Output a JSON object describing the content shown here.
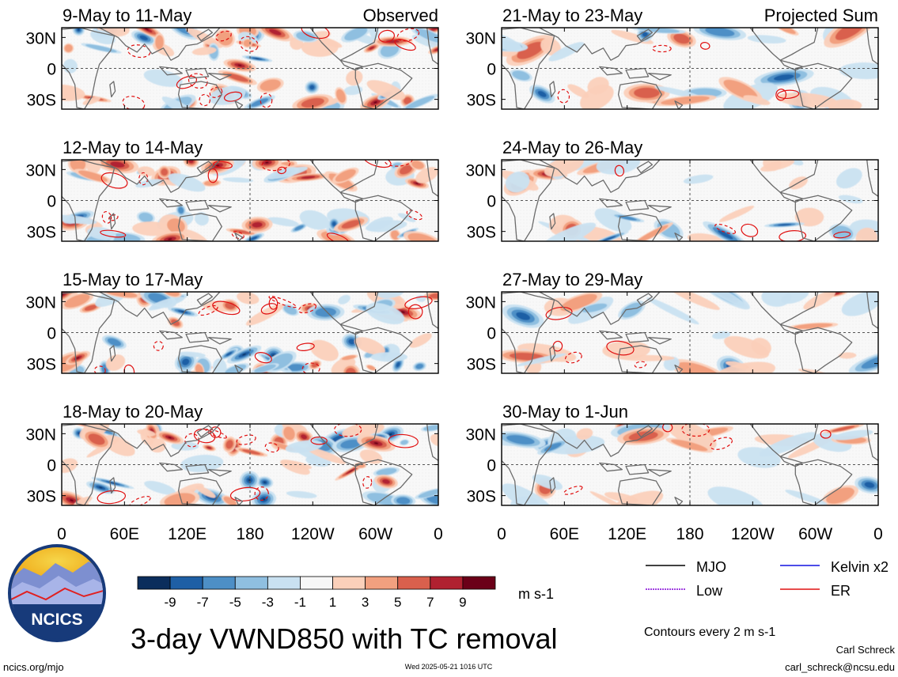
{
  "chart_data": {
    "type": "heatmap",
    "title": "3-day VWND850 with TC removal",
    "units": "m s-1",
    "contour_note": "Contours every 2 m s-1",
    "columns": [
      {
        "label": "Observed",
        "panels": [
          "9-May to 11-May",
          "12-May to 14-May",
          "15-May to 17-May",
          "18-May to 20-May"
        ]
      },
      {
        "label": "Projected Sum",
        "panels": [
          "21-May to 23-May",
          "24-May to 26-May",
          "27-May to 29-May",
          "30-May to 1-Jun"
        ]
      }
    ],
    "x_ticks": [
      "0",
      "60E",
      "120E",
      "180",
      "120W",
      "60W",
      "0"
    ],
    "y_ticks": [
      "30N",
      "0",
      "30S"
    ],
    "colorbar": {
      "labels": [
        "-9",
        "-7",
        "-5",
        "-3",
        "-1",
        "1",
        "3",
        "5",
        "7",
        "9"
      ],
      "colors": [
        "#0b2d5c",
        "#1e5fa5",
        "#4d8fc6",
        "#8fbfe0",
        "#c9e1f1",
        "#f7f7f7",
        "#fbd0ba",
        "#f2a07f",
        "#d9604d",
        "#b02130",
        "#6b0018"
      ]
    },
    "legend": [
      {
        "name": "MJO",
        "color": "#000000",
        "style": "solid"
      },
      {
        "name": "Kelvin x2",
        "color": "#1010e0",
        "style": "solid"
      },
      {
        "name": "Low",
        "color": "#a040e0",
        "style": "dotted"
      },
      {
        "name": "ER",
        "color": "#e01010",
        "style": "solid"
      }
    ]
  },
  "footer": {
    "logo_text": "NCICS",
    "url": "ncics.org/mjo",
    "timestamp": "Wed 2025-05-21 1016 UTC",
    "author": "Carl Schreck",
    "email": "carl_schreck@ncsu.edu"
  }
}
